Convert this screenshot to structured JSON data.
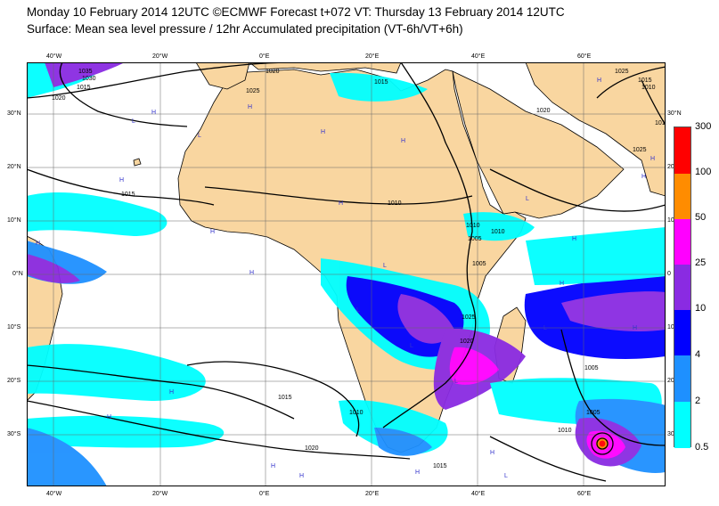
{
  "title_line1": "Monday 10 February 2014 12UTC ©ECMWF Forecast t+072 VT: Thursday 13 February 2014 12UTC",
  "title_line2": "Surface: Mean sea level pressure / 12hr Accumulated precipitation (VT-6h/VT+6h)",
  "colors": {
    "land": "#f9d6a0",
    "sea": "#ffffff",
    "coast": "#000000",
    "grid": "#666666",
    "isobar": "#000000"
  },
  "lon_labels_top": [
    "40°W",
    "20°W",
    "0°E",
    "20°E",
    "40°E",
    "60°E"
  ],
  "lon_labels_bottom": [
    "40°W",
    "20°W",
    "0°E",
    "20°E",
    "40°E",
    "60°E"
  ],
  "lat_labels_left": [
    "30°N",
    "20°N",
    "10°N",
    "0°N",
    "10°S",
    "20°S",
    "30°S"
  ],
  "lat_labels_right": [
    "30°N",
    "20",
    "10",
    "0",
    "10",
    "20",
    "30"
  ],
  "isobar_labels": [
    "1035",
    "1030",
    "1015",
    "1020",
    "1020",
    "1025",
    "1015",
    "1010",
    "1015",
    "1025",
    "1020",
    "1010",
    "1015",
    "1010",
    "1010",
    "1005",
    "1010",
    "1005",
    "1025",
    "1020",
    "1005",
    "1015",
    "1020",
    "1010",
    "1005",
    "1015",
    "1010",
    "1025"
  ],
  "pressure_marks": [
    "H",
    "H",
    "H",
    "H",
    "L",
    "L",
    "H",
    "H",
    "H",
    "H",
    "H",
    "L",
    "L",
    "H",
    "H",
    "H",
    "L",
    "L",
    "H",
    "H",
    "H",
    "H",
    "L",
    "L",
    "L",
    "H",
    "H",
    "H",
    "H",
    "H"
  ],
  "legend": {
    "levels": [
      "0.5",
      "2",
      "4",
      "10",
      "25",
      "50",
      "100",
      "300"
    ],
    "colors": [
      "#00ffff",
      "#1e90ff",
      "#0000ff",
      "#8a2be2",
      "#ff00ff",
      "#ff8c00",
      "#ff0000"
    ]
  }
}
